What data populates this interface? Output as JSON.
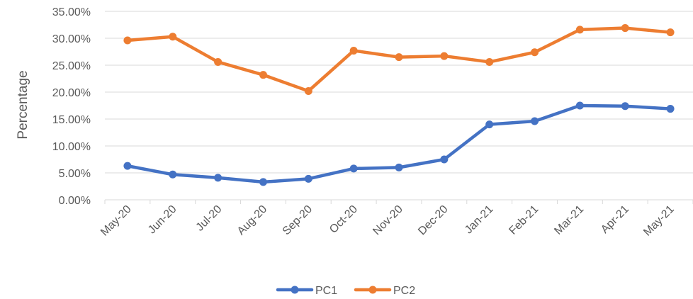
{
  "chart_data": {
    "type": "line",
    "title": "",
    "xlabel": "",
    "ylabel": "Percentage",
    "categories": [
      "May-20",
      "Jun-20",
      "Jul-20",
      "Aug-20",
      "Sep-20",
      "Oct-20",
      "Nov-20",
      "Dec-20",
      "Jan-21",
      "Feb-21",
      "Mar-21",
      "Apr-21",
      "May-21"
    ],
    "ylim": [
      0,
      35
    ],
    "yticks": [
      0,
      5,
      10,
      15,
      20,
      25,
      30,
      35
    ],
    "ytick_labels": [
      "0.00%",
      "5.00%",
      "10.00%",
      "15.00%",
      "20.00%",
      "25.00%",
      "30.00%",
      "35.00%"
    ],
    "y_unit": "%",
    "grid": true,
    "legend_position": "bottom",
    "series": [
      {
        "name": "PC1",
        "color": "#4472C4",
        "values": [
          6.3,
          4.7,
          4.1,
          3.3,
          3.9,
          5.8,
          6.0,
          7.5,
          14.0,
          14.6,
          17.5,
          17.4,
          16.9
        ]
      },
      {
        "name": "PC2",
        "color": "#ED7D31",
        "values": [
          29.6,
          30.3,
          25.6,
          23.2,
          20.2,
          27.7,
          26.5,
          26.7,
          25.6,
          27.4,
          31.6,
          31.9,
          31.1
        ]
      }
    ]
  }
}
